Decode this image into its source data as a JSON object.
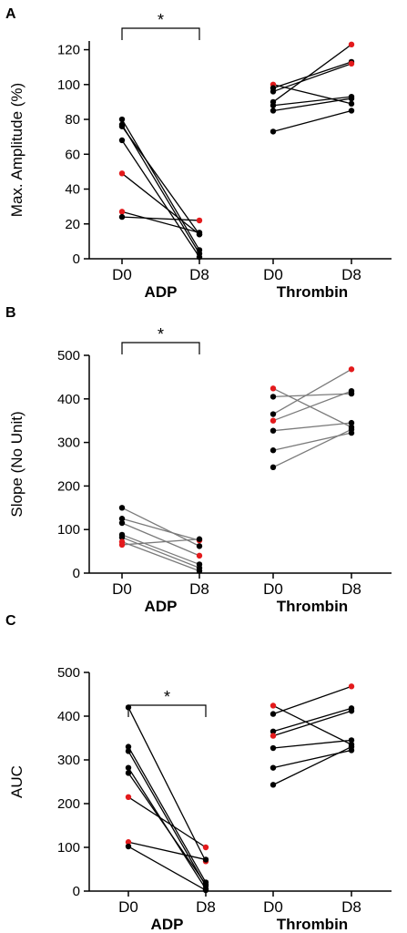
{
  "colors": {
    "axis": "#000000",
    "point": "#000000",
    "highlight": "#e31a1c",
    "line_dark": "#000000",
    "line_gray": "#7a7a7a"
  },
  "chart_data": [
    {
      "panel": "A",
      "type": "line",
      "ylabel": "Max. Amplitude (%)",
      "ylim": [
        0,
        125
      ],
      "yticks": [
        "0",
        "20",
        "40",
        "60",
        "80",
        "100",
        "120"
      ],
      "xticks": [
        "D0",
        "D8",
        "D0",
        "D8"
      ],
      "groups": [
        "ADP",
        "Thrombin"
      ],
      "significance": {
        "label": "*",
        "group": "ADP"
      },
      "pairs": [
        {
          "group": "ADP",
          "d0": 80,
          "d8": 5,
          "d0_red": false,
          "d8_red": false,
          "line": "dark"
        },
        {
          "group": "ADP",
          "d0": 77,
          "d8": 3,
          "d0_red": false,
          "d8_red": false,
          "line": "dark"
        },
        {
          "group": "ADP",
          "d0": 76,
          "d8": 14,
          "d0_red": false,
          "d8_red": false,
          "line": "dark"
        },
        {
          "group": "ADP",
          "d0": 68,
          "d8": 1,
          "d0_red": false,
          "d8_red": false,
          "line": "dark"
        },
        {
          "group": "ADP",
          "d0": 49,
          "d8": 14,
          "d0_red": true,
          "d8_red": false,
          "line": "dark"
        },
        {
          "group": "ADP",
          "d0": 27,
          "d8": 15,
          "d0_red": true,
          "d8_red": false,
          "line": "dark"
        },
        {
          "group": "ADP",
          "d0": 24,
          "d8": 22,
          "d0_red": false,
          "d8_red": true,
          "line": "dark"
        },
        {
          "group": "Thrombin",
          "d0": 100,
          "d8": 89,
          "d0_red": true,
          "d8_red": false,
          "line": "dark"
        },
        {
          "group": "Thrombin",
          "d0": 98,
          "d8": 113,
          "d0_red": false,
          "d8_red": false,
          "line": "dark"
        },
        {
          "group": "Thrombin",
          "d0": 96,
          "d8": 112,
          "d0_red": false,
          "d8_red": true,
          "line": "dark"
        },
        {
          "group": "Thrombin",
          "d0": 90,
          "d8": 123,
          "d0_red": false,
          "d8_red": true,
          "line": "dark"
        },
        {
          "group": "Thrombin",
          "d0": 88,
          "d8": 93,
          "d0_red": false,
          "d8_red": false,
          "line": "dark"
        },
        {
          "group": "Thrombin",
          "d0": 85,
          "d8": 92,
          "d0_red": false,
          "d8_red": false,
          "line": "dark"
        },
        {
          "group": "Thrombin",
          "d0": 73,
          "d8": 85,
          "d0_red": false,
          "d8_red": false,
          "line": "dark"
        }
      ]
    },
    {
      "panel": "B",
      "type": "line",
      "ylabel": "Slope (No Unit)",
      "ylim": [
        0,
        500
      ],
      "yticks": [
        "0",
        "100",
        "200",
        "300",
        "400",
        "500"
      ],
      "xticks": [
        "D0",
        "D8",
        "D0",
        "D8"
      ],
      "groups": [
        "ADP",
        "Thrombin"
      ],
      "significance": {
        "label": "*",
        "group": "ADP"
      },
      "pairs": [
        {
          "group": "ADP",
          "d0": 150,
          "d8": 62,
          "d0_red": false,
          "d8_red": false,
          "line": "gray"
        },
        {
          "group": "ADP",
          "d0": 125,
          "d8": 75,
          "d0_red": false,
          "d8_red": true,
          "line": "gray"
        },
        {
          "group": "ADP",
          "d0": 115,
          "d8": 40,
          "d0_red": false,
          "d8_red": true,
          "line": "gray"
        },
        {
          "group": "ADP",
          "d0": 88,
          "d8": 20,
          "d0_red": false,
          "d8_red": false,
          "line": "gray"
        },
        {
          "group": "ADP",
          "d0": 82,
          "d8": 12,
          "d0_red": false,
          "d8_red": false,
          "line": "gray"
        },
        {
          "group": "ADP",
          "d0": 72,
          "d8": 5,
          "d0_red": true,
          "d8_red": false,
          "line": "gray"
        },
        {
          "group": "ADP",
          "d0": 65,
          "d8": 78,
          "d0_red": true,
          "d8_red": false,
          "line": "gray"
        },
        {
          "group": "Thrombin",
          "d0": 424,
          "d8": 335,
          "d0_red": true,
          "d8_red": false,
          "line": "gray"
        },
        {
          "group": "Thrombin",
          "d0": 405,
          "d8": 412,
          "d0_red": false,
          "d8_red": false,
          "line": "gray"
        },
        {
          "group": "Thrombin",
          "d0": 365,
          "d8": 468,
          "d0_red": false,
          "d8_red": true,
          "line": "gray"
        },
        {
          "group": "Thrombin",
          "d0": 350,
          "d8": 418,
          "d0_red": true,
          "d8_red": false,
          "line": "gray"
        },
        {
          "group": "Thrombin",
          "d0": 327,
          "d8": 345,
          "d0_red": false,
          "d8_red": false,
          "line": "gray"
        },
        {
          "group": "Thrombin",
          "d0": 282,
          "d8": 322,
          "d0_red": false,
          "d8_red": false,
          "line": "gray"
        },
        {
          "group": "Thrombin",
          "d0": 243,
          "d8": 330,
          "d0_red": false,
          "d8_red": false,
          "line": "gray"
        }
      ]
    },
    {
      "panel": "C",
      "type": "line",
      "ylabel": "AUC",
      "ylim": [
        0,
        500
      ],
      "yticks": [
        "0",
        "100",
        "200",
        "300",
        "400",
        "500"
      ],
      "xticks": [
        "D0",
        "D8",
        "D0",
        "D8"
      ],
      "groups": [
        "ADP",
        "Thrombin"
      ],
      "significance": {
        "label": "*",
        "group": "ADP"
      },
      "pairs": [
        {
          "group": "ADP",
          "d0": 420,
          "d8": 68,
          "d0_red": false,
          "d8_red": true,
          "line": "dark"
        },
        {
          "group": "ADP",
          "d0": 330,
          "d8": 20,
          "d0_red": false,
          "d8_red": false,
          "line": "dark"
        },
        {
          "group": "ADP",
          "d0": 320,
          "d8": 12,
          "d0_red": false,
          "d8_red": false,
          "line": "dark"
        },
        {
          "group": "ADP",
          "d0": 282,
          "d8": 5,
          "d0_red": false,
          "d8_red": false,
          "line": "dark"
        },
        {
          "group": "ADP",
          "d0": 270,
          "d8": 15,
          "d0_red": false,
          "d8_red": false,
          "line": "dark"
        },
        {
          "group": "ADP",
          "d0": 215,
          "d8": 100,
          "d0_red": true,
          "d8_red": true,
          "line": "dark"
        },
        {
          "group": "ADP",
          "d0": 112,
          "d8": 72,
          "d0_red": true,
          "d8_red": false,
          "line": "dark"
        },
        {
          "group": "ADP",
          "d0": 102,
          "d8": 2,
          "d0_red": false,
          "d8_red": false,
          "line": "dark"
        },
        {
          "group": "Thrombin",
          "d0": 424,
          "d8": 335,
          "d0_red": true,
          "d8_red": false,
          "line": "dark"
        },
        {
          "group": "Thrombin",
          "d0": 405,
          "d8": 468,
          "d0_red": false,
          "d8_red": true,
          "line": "dark"
        },
        {
          "group": "Thrombin",
          "d0": 365,
          "d8": 418,
          "d0_red": false,
          "d8_red": false,
          "line": "dark"
        },
        {
          "group": "Thrombin",
          "d0": 355,
          "d8": 412,
          "d0_red": true,
          "d8_red": false,
          "line": "dark"
        },
        {
          "group": "Thrombin",
          "d0": 327,
          "d8": 345,
          "d0_red": false,
          "d8_red": false,
          "line": "dark"
        },
        {
          "group": "Thrombin",
          "d0": 282,
          "d8": 322,
          "d0_red": false,
          "d8_red": false,
          "line": "dark"
        },
        {
          "group": "Thrombin",
          "d0": 243,
          "d8": 330,
          "d0_red": false,
          "d8_red": false,
          "line": "dark"
        }
      ]
    }
  ]
}
